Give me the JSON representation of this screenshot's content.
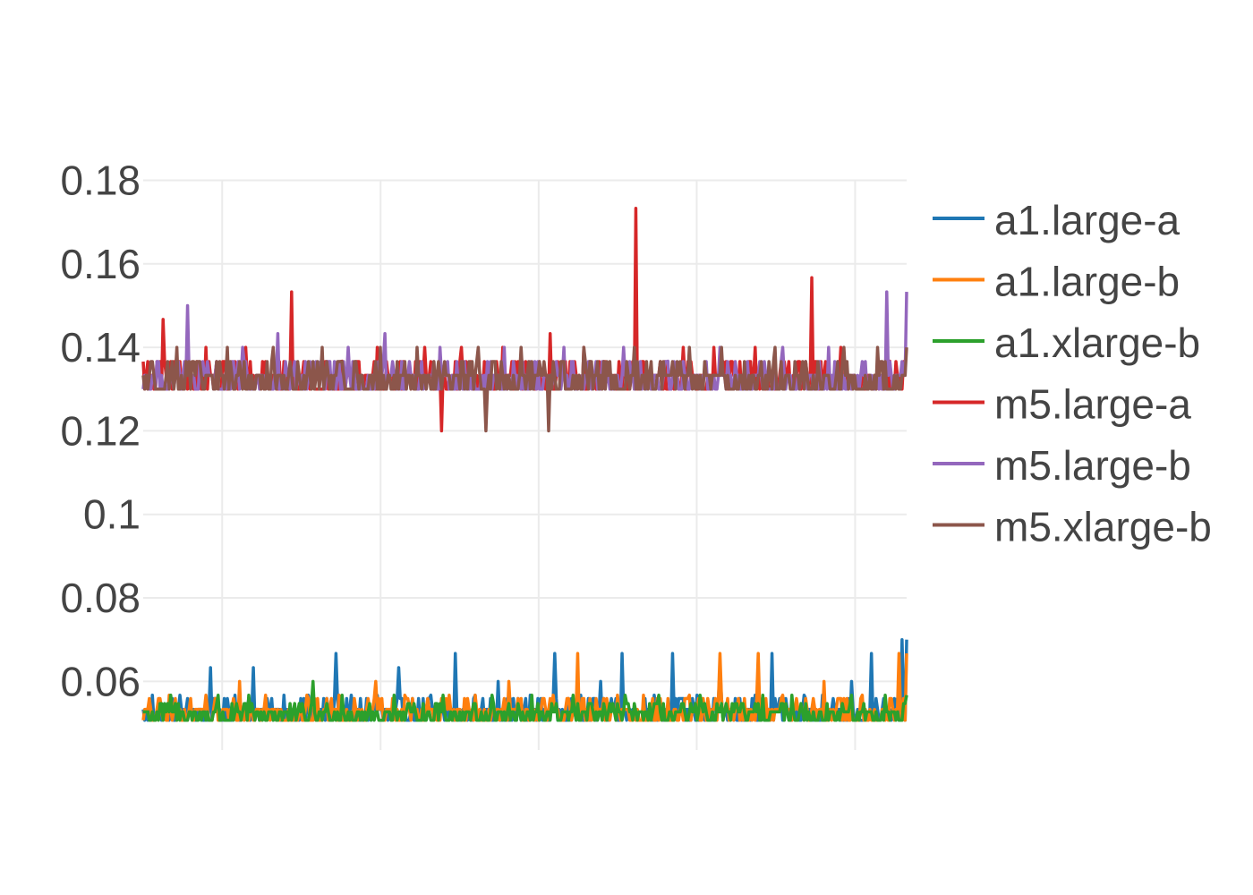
{
  "chart_data": {
    "type": "line",
    "title": "",
    "xlabel": "",
    "ylabel": "",
    "ylim": [
      0.05,
      0.18
    ],
    "y_ticks": [
      {
        "value": 0.06,
        "label": "0.06"
      },
      {
        "value": 0.08,
        "label": "0.08"
      },
      {
        "value": 0.1,
        "label": "0.1"
      },
      {
        "value": 0.12,
        "label": "0.12"
      },
      {
        "value": 0.14,
        "label": "0.14"
      },
      {
        "value": 0.16,
        "label": "0.16"
      },
      {
        "value": 0.18,
        "label": "0.18"
      }
    ],
    "x_range": [
      0,
      1000
    ],
    "x_gridlines": [
      103.5,
      311,
      518,
      725,
      932.5
    ],
    "grid": true,
    "legend_position": "right",
    "series": [
      {
        "name": "a1.large-a",
        "color": "#1f77b4",
        "level": 0.0533,
        "low": 0.0507,
        "highs": [
          0.0567,
          0.0567,
          0.0633,
          0.0567,
          0.0633,
          0.0567,
          0.0567,
          0.0667,
          0.0567,
          0.0567,
          0.0633,
          0.0567,
          0.0667,
          0.0567,
          0.06,
          0.0567,
          0.0667,
          0.0567,
          0.06,
          0.0667,
          0.0567,
          0.0667,
          0.0567,
          0.0633,
          0.0567,
          0.0667,
          0.0567,
          0.0567,
          0.06,
          0.0667,
          0.07
        ]
      },
      {
        "name": "a1.large-b",
        "color": "#ff7f0e",
        "level": 0.0533,
        "low": 0.0507,
        "highs": [
          0.0567,
          0.0567,
          0.06,
          0.0567,
          0.0567,
          0.0567,
          0.06,
          0.0567,
          0.0567,
          0.0567,
          0.06,
          0.0567,
          0.0667,
          0.0567,
          0.0567,
          0.0567,
          0.0667,
          0.0667,
          0.0567,
          0.06,
          0.0567,
          0.0667
        ]
      },
      {
        "name": "a1.xlarge-b",
        "color": "#2ca02c",
        "level": 0.0527,
        "low": 0.0507,
        "highs": [
          0.0567,
          0.0567,
          0.0567,
          0.06,
          0.0567,
          0.0567,
          0.0567,
          0.0567,
          0.0567,
          0.0567,
          0.0567,
          0.0567,
          0.0567,
          0.0567,
          0.0567,
          0.0567,
          0.0567
        ]
      },
      {
        "name": "m5.large-a",
        "color": "#d62728",
        "level": 0.1333,
        "low": 0.13,
        "highs": [
          0.1467,
          0.14,
          0.14,
          0.1533,
          0.1367,
          0.14,
          0.14,
          0.14,
          0.14,
          0.1433,
          0.14,
          0.1733,
          0.14,
          0.14,
          0.14,
          0.1567,
          0.14,
          0.1367
        ],
        "dips": [
          0.12
        ]
      },
      {
        "name": "m5.large-b",
        "color": "#9467bd",
        "level": 0.1333,
        "low": 0.13,
        "highs": [
          0.15,
          0.14,
          0.1433,
          0.14,
          0.1433,
          0.14,
          0.14,
          0.14,
          0.14,
          0.1367,
          0.14,
          0.14,
          0.14,
          0.1533
        ]
      },
      {
        "name": "m5.xlarge-b",
        "color": "#8c564b",
        "level": 0.1333,
        "low": 0.13,
        "highs": [
          0.14,
          0.14,
          0.14,
          0.14,
          0.14,
          0.14,
          0.14,
          0.14,
          0.14,
          0.14,
          0.14,
          0.14,
          0.14,
          0.14,
          0.14
        ],
        "dips": [
          0.12,
          0.12
        ]
      }
    ]
  }
}
